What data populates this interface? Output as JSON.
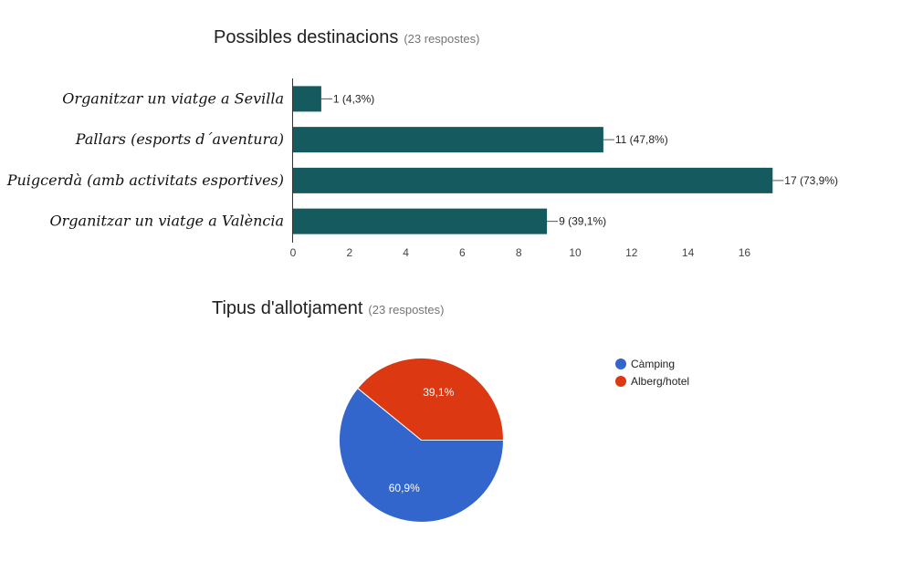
{
  "charts": [
    {
      "title": "Possibles destinacions",
      "responses": "(23 respostes)"
    },
    {
      "title": "Tipus d'allotjament",
      "responses": "(23 respostes)"
    }
  ],
  "chart_data": [
    {
      "type": "bar",
      "orientation": "horizontal",
      "title": "Possibles destinacions",
      "subtitle": "(23 respostes)",
      "categories": [
        "Organitzar un viatge a Sevilla",
        "Pallars (esports d´aventura)",
        "Puigcerdà (amb activitats esportives)",
        "Organitzar un viatge a València"
      ],
      "values": [
        1,
        11,
        17,
        9
      ],
      "data_labels": [
        "1 (4,3%)",
        "11 (47,8%)",
        "17 (73,9%)",
        "9 (39,1%)"
      ],
      "xticks": [
        0,
        2,
        4,
        6,
        8,
        10,
        12,
        14,
        16
      ],
      "xlim": [
        0,
        18
      ],
      "bar_color": "#145A5F",
      "grid": false
    },
    {
      "type": "pie",
      "title": "Tipus d'allotjament",
      "subtitle": "(23 respostes)",
      "categories": [
        "Càmping",
        "Alberg/hotel"
      ],
      "values": [
        60.9,
        39.1
      ],
      "data_labels": [
        "60,9%",
        "39,1%"
      ],
      "colors": [
        "#3366CC",
        "#DC3912"
      ],
      "legend": "right"
    }
  ]
}
